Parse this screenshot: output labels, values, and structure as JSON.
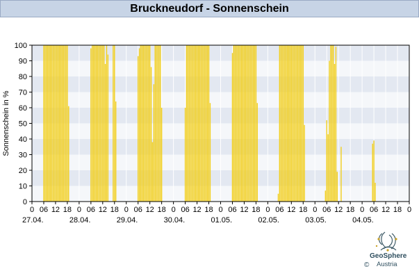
{
  "title": "Bruckneudorf - Sonnenschein",
  "colors": {
    "bar": "#f2cf1d",
    "band_dark": "#e3e8f1",
    "band_light": "#f5f7fa",
    "frame": "#000000",
    "grid": "#ffffff"
  },
  "logo": {
    "name_line1": "GeoSphere",
    "name_line2": "Austria",
    "copyright": "©"
  },
  "chart_data": {
    "type": "bar",
    "ylabel": "Sonnenschein in %",
    "ylim": [
      0,
      100
    ],
    "yticks": [
      0,
      10,
      20,
      30,
      40,
      50,
      60,
      70,
      80,
      90,
      100
    ],
    "x_hour_ticks": [
      "0",
      "06",
      "12",
      "18"
    ],
    "x_end_tick": "0",
    "days": [
      "27.04.",
      "28.04.",
      "29.04.",
      "30.04.",
      "01.05.",
      "02.05.",
      "03.05.",
      "04.05."
    ],
    "grid": true,
    "bar_width_hours": 0.5,
    "series": [
      {
        "values": [
          {
            "x": 6.0,
            "v": 100
          },
          {
            "x": 6.67,
            "v": 100
          },
          {
            "x": 7.33,
            "v": 100
          },
          {
            "x": 8.0,
            "v": 100
          },
          {
            "x": 8.67,
            "v": 100
          },
          {
            "x": 9.33,
            "v": 100
          },
          {
            "x": 10.0,
            "v": 100
          },
          {
            "x": 10.67,
            "v": 100
          },
          {
            "x": 11.33,
            "v": 100
          },
          {
            "x": 12.0,
            "v": 100
          },
          {
            "x": 12.67,
            "v": 100
          },
          {
            "x": 13.33,
            "v": 100
          },
          {
            "x": 14.0,
            "v": 100
          },
          {
            "x": 14.67,
            "v": 100
          },
          {
            "x": 15.33,
            "v": 100
          },
          {
            "x": 16.0,
            "v": 100
          },
          {
            "x": 16.67,
            "v": 100
          },
          {
            "x": 17.33,
            "v": 100
          },
          {
            "x": 18.0,
            "v": 100
          },
          {
            "x": 18.67,
            "v": 61
          },
          {
            "x": 30.0,
            "v": 98
          },
          {
            "x": 30.67,
            "v": 100
          },
          {
            "x": 31.33,
            "v": 100
          },
          {
            "x": 32.0,
            "v": 100
          },
          {
            "x": 32.67,
            "v": 100
          },
          {
            "x": 33.33,
            "v": 100
          },
          {
            "x": 34.0,
            "v": 100
          },
          {
            "x": 34.67,
            "v": 100
          },
          {
            "x": 35.33,
            "v": 100
          },
          {
            "x": 36.0,
            "v": 100
          },
          {
            "x": 36.67,
            "v": 100
          },
          {
            "x": 37.33,
            "v": 88
          },
          {
            "x": 38.0,
            "v": 100
          },
          {
            "x": 38.67,
            "v": 94
          },
          {
            "x": 41.33,
            "v": 100
          },
          {
            "x": 42.0,
            "v": 100
          },
          {
            "x": 42.67,
            "v": 64
          },
          {
            "x": 54.0,
            "v": 93
          },
          {
            "x": 54.67,
            "v": 98
          },
          {
            "x": 55.33,
            "v": 100
          },
          {
            "x": 56.0,
            "v": 100
          },
          {
            "x": 56.67,
            "v": 100
          },
          {
            "x": 57.33,
            "v": 100
          },
          {
            "x": 58.0,
            "v": 100
          },
          {
            "x": 58.67,
            "v": 100
          },
          {
            "x": 59.33,
            "v": 100
          },
          {
            "x": 60.0,
            "v": 100
          },
          {
            "x": 60.67,
            "v": 86
          },
          {
            "x": 61.33,
            "v": 38
          },
          {
            "x": 62.0,
            "v": 75
          },
          {
            "x": 62.67,
            "v": 100
          },
          {
            "x": 63.33,
            "v": 100
          },
          {
            "x": 64.0,
            "v": 100
          },
          {
            "x": 64.67,
            "v": 100
          },
          {
            "x": 65.33,
            "v": 100
          },
          {
            "x": 66.0,
            "v": 60
          },
          {
            "x": 78.0,
            "v": 60
          },
          {
            "x": 78.67,
            "v": 100
          },
          {
            "x": 79.33,
            "v": 100
          },
          {
            "x": 80.0,
            "v": 100
          },
          {
            "x": 80.67,
            "v": 100
          },
          {
            "x": 81.33,
            "v": 100
          },
          {
            "x": 82.0,
            "v": 100
          },
          {
            "x": 82.67,
            "v": 100
          },
          {
            "x": 83.33,
            "v": 100
          },
          {
            "x": 84.0,
            "v": 100
          },
          {
            "x": 84.67,
            "v": 100
          },
          {
            "x": 85.33,
            "v": 100
          },
          {
            "x": 86.0,
            "v": 100
          },
          {
            "x": 86.67,
            "v": 100
          },
          {
            "x": 87.33,
            "v": 100
          },
          {
            "x": 88.0,
            "v": 100
          },
          {
            "x": 88.67,
            "v": 100
          },
          {
            "x": 89.33,
            "v": 100
          },
          {
            "x": 90.0,
            "v": 100
          },
          {
            "x": 90.67,
            "v": 63
          },
          {
            "x": 102.0,
            "v": 95
          },
          {
            "x": 102.67,
            "v": 100
          },
          {
            "x": 103.33,
            "v": 100
          },
          {
            "x": 104.0,
            "v": 100
          },
          {
            "x": 104.67,
            "v": 100
          },
          {
            "x": 105.33,
            "v": 100
          },
          {
            "x": 106.0,
            "v": 100
          },
          {
            "x": 106.67,
            "v": 100
          },
          {
            "x": 107.33,
            "v": 100
          },
          {
            "x": 108.0,
            "v": 100
          },
          {
            "x": 108.67,
            "v": 100
          },
          {
            "x": 109.33,
            "v": 100
          },
          {
            "x": 110.0,
            "v": 100
          },
          {
            "x": 110.67,
            "v": 100
          },
          {
            "x": 111.33,
            "v": 100
          },
          {
            "x": 112.0,
            "v": 100
          },
          {
            "x": 112.67,
            "v": 100
          },
          {
            "x": 113.33,
            "v": 100
          },
          {
            "x": 114.0,
            "v": 100
          },
          {
            "x": 114.67,
            "v": 63
          },
          {
            "x": 125.33,
            "v": 5
          },
          {
            "x": 126.0,
            "v": 100
          },
          {
            "x": 126.67,
            "v": 100
          },
          {
            "x": 127.33,
            "v": 100
          },
          {
            "x": 128.0,
            "v": 100
          },
          {
            "x": 128.67,
            "v": 100
          },
          {
            "x": 129.33,
            "v": 100
          },
          {
            "x": 130.0,
            "v": 100
          },
          {
            "x": 130.67,
            "v": 100
          },
          {
            "x": 131.33,
            "v": 100
          },
          {
            "x": 132.0,
            "v": 100
          },
          {
            "x": 132.67,
            "v": 100
          },
          {
            "x": 133.33,
            "v": 100
          },
          {
            "x": 134.0,
            "v": 100
          },
          {
            "x": 134.67,
            "v": 100
          },
          {
            "x": 135.33,
            "v": 100
          },
          {
            "x": 136.0,
            "v": 100
          },
          {
            "x": 136.67,
            "v": 100
          },
          {
            "x": 137.33,
            "v": 100
          },
          {
            "x": 138.0,
            "v": 100
          },
          {
            "x": 138.67,
            "v": 49
          },
          {
            "x": 149.33,
            "v": 7
          },
          {
            "x": 150.0,
            "v": 52
          },
          {
            "x": 150.67,
            "v": 43
          },
          {
            "x": 151.33,
            "v": 90
          },
          {
            "x": 152.0,
            "v": 100
          },
          {
            "x": 152.67,
            "v": 100
          },
          {
            "x": 153.33,
            "v": 100
          },
          {
            "x": 154.0,
            "v": 88
          },
          {
            "x": 154.67,
            "v": 99
          },
          {
            "x": 155.33,
            "v": 19
          },
          {
            "x": 157.33,
            "v": 35
          },
          {
            "x": 173.33,
            "v": 37
          },
          {
            "x": 174.0,
            "v": 39
          },
          {
            "x": 174.67,
            "v": 12
          }
        ]
      }
    ]
  }
}
